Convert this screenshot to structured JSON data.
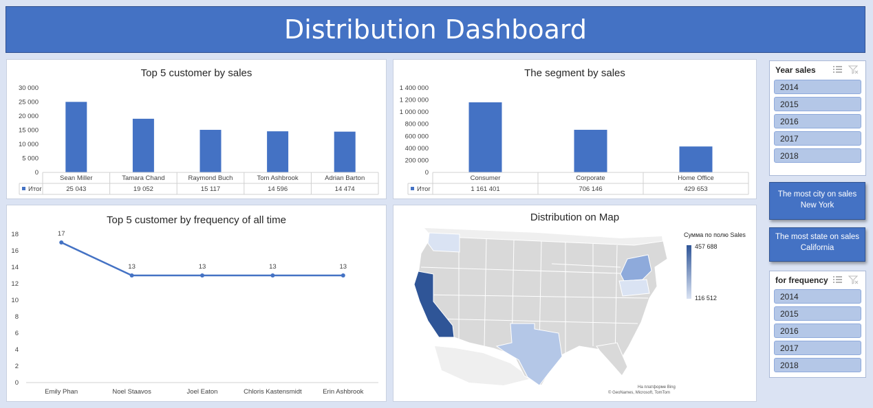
{
  "header": {
    "title": "Distribution Dashboard"
  },
  "colors": {
    "accent": "#4472c4",
    "header_bg": "#4472c4",
    "slicer_item": "#b4c7e7",
    "map_high": "#2f5597",
    "map_low": "#dae3f3"
  },
  "charts": {
    "top5_sales_title": "Top 5 customer by sales",
    "segment_title": "The segment by sales",
    "frequency_title": "Top 5 customer by frequency of all time",
    "map_title": "Distribution on Map"
  },
  "chart_data": [
    {
      "type": "bar",
      "title": "Top 5 customer by sales",
      "categories": [
        "Sean Miller",
        "Tamara Chand",
        "Raymond Buch",
        "Tom Ashbrook",
        "Adrian Barton"
      ],
      "series": [
        {
          "name": "Итог",
          "values": [
            25043,
            19052,
            15117,
            14596,
            14474
          ]
        }
      ],
      "value_labels": [
        "25 043",
        "19 052",
        "15 117",
        "14 596",
        "14 474"
      ],
      "yticks": [
        "0",
        "5 000",
        "10 000",
        "15 000",
        "20 000",
        "25 000",
        "30 000"
      ],
      "ylim": [
        0,
        30000
      ],
      "data_table": true
    },
    {
      "type": "bar",
      "title": "The segment by sales",
      "categories": [
        "Consumer",
        "Corporate",
        "Home Office"
      ],
      "series": [
        {
          "name": "Итог",
          "values": [
            1161401,
            706146,
            429653
          ]
        }
      ],
      "value_labels": [
        "1 161 401",
        "706 146",
        "429 653"
      ],
      "yticks": [
        "0",
        "200 000",
        "400 000",
        "600 000",
        "800 000",
        "1 000 000",
        "1 200 000",
        "1 400 000"
      ],
      "ylim": [
        0,
        1400000
      ],
      "data_table": true
    },
    {
      "type": "line",
      "title": "Top 5 customer by frequency of all time",
      "categories": [
        "Emily Phan",
        "Noel Staavos",
        "Joel Eaton",
        "Chloris Kastensmidt",
        "Erin Ashbrook"
      ],
      "values": [
        17,
        13,
        13,
        13,
        13
      ],
      "yticks": [
        "0",
        "2",
        "4",
        "6",
        "8",
        "10",
        "12",
        "14",
        "16",
        "18"
      ],
      "ylim": [
        0,
        18
      ]
    }
  ],
  "map": {
    "legend_title": "Сумма по полю Sales",
    "legend_max": "457 688",
    "legend_min": "116 512",
    "credit_line1": "На платформе Bing",
    "credit_line2": "© GeoNames, Microsoft, TomTom"
  },
  "slicers": {
    "year_sales": {
      "title": "Year sales",
      "items": [
        "2014",
        "2015",
        "2016",
        "2017",
        "2018"
      ]
    },
    "for_frequency": {
      "title": "for frequency",
      "items": [
        "2014",
        "2015",
        "2016",
        "2017",
        "2018"
      ]
    }
  },
  "kpis": {
    "city": {
      "label": "The most city on sales",
      "value": "New York"
    },
    "state": {
      "label": "The most state on sales",
      "value": "California"
    }
  }
}
